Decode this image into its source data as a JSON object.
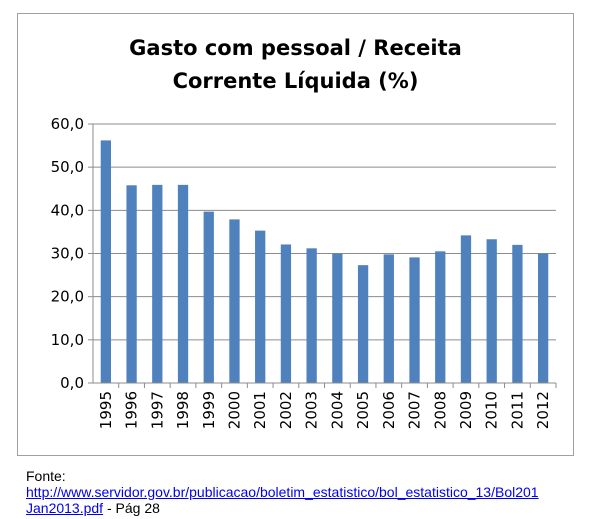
{
  "chart_data": {
    "type": "bar",
    "title_line1": "Gasto com pessoal / Receita",
    "title_line2": "Corrente Líquida (%)",
    "categories": [
      "1995",
      "1996",
      "1997",
      "1998",
      "1999",
      "2000",
      "2001",
      "2002",
      "2003",
      "2004",
      "2005",
      "2006",
      "2007",
      "2008",
      "2009",
      "2010",
      "2011",
      "2012"
    ],
    "values": [
      56.2,
      45.8,
      45.9,
      45.9,
      39.7,
      37.9,
      35.3,
      32.1,
      31.2,
      30.0,
      27.3,
      29.8,
      29.1,
      30.5,
      34.2,
      33.3,
      32.0,
      30.0
    ],
    "ylim": [
      0,
      60
    ],
    "yticks": [
      "0,0",
      "10,0",
      "20,0",
      "30,0",
      "40,0",
      "50,0",
      "60,0"
    ],
    "xlabel": "",
    "ylabel": "",
    "grid": true,
    "bar_color": "#4f81bd"
  },
  "source": {
    "label": "Fonte:",
    "url_line1": "http://www.servidor.gov.br/publicacao/boletim_estatistico/bol_estatistico_13/Bol201",
    "url_line2": "Jan2013.pdf",
    "suffix": " - Pág 28"
  }
}
